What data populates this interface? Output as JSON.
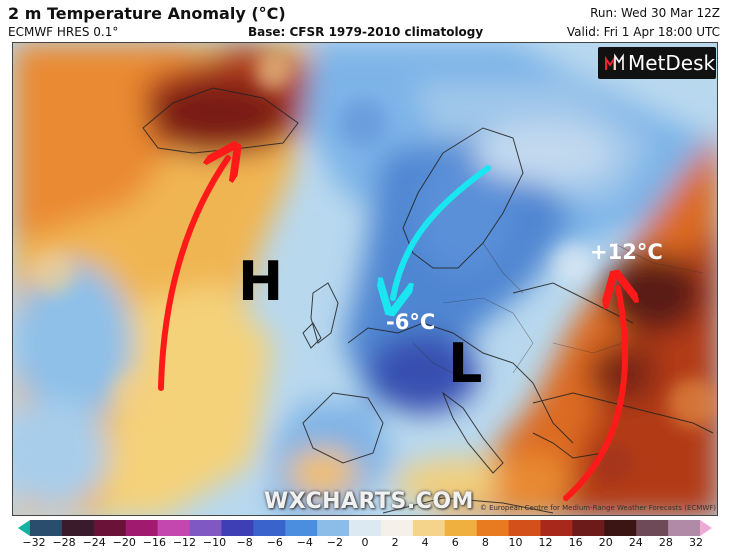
{
  "header": {
    "title": "2 m Temperature Anomaly (°C)",
    "model": "ECMWF HRES 0.1°",
    "base": "Base: CFSR 1979-2010 climatology",
    "run": "Run: Wed 30 Mar 12Z",
    "valid": "Valid: Fri 1 Apr 18:00 UTC"
  },
  "brand": {
    "logo_text": "MetDesk",
    "watermark": "WXCHARTS.COM",
    "copyright": "© European Centre for Medium-Range Weather Forecasts (ECMWF)"
  },
  "annotations": {
    "high": "H",
    "low": "L",
    "cold_anomaly": "-6°C",
    "warm_anomaly": "+12°C",
    "arrow_colors": {
      "warm_flow": "#ff1a1a",
      "cold_flow": "#19e6f0"
    }
  },
  "legend": {
    "ticks": [
      "−32",
      "−28",
      "−24",
      "−20",
      "−16",
      "−12",
      "−10",
      "−8",
      "−6",
      "−4",
      "−2",
      "0",
      "2",
      "4",
      "6",
      "8",
      "10",
      "12",
      "16",
      "20",
      "24",
      "28",
      "32"
    ],
    "colors": [
      "#10b5a0",
      "#2a4d6e",
      "#3a1b2b",
      "#6a1238",
      "#a01a70",
      "#c447b0",
      "#7f58c4",
      "#3f3fb5",
      "#3a63cc",
      "#4b8ee0",
      "#8cbde8",
      "#dde9f2",
      "#f5f0ea",
      "#f3d48a",
      "#f0b040",
      "#e87a20",
      "#d4501a",
      "#a8281c",
      "#6d1a1a",
      "#3b1414",
      "#6e4a58",
      "#b08aa6",
      "#f0a8d8"
    ]
  }
}
